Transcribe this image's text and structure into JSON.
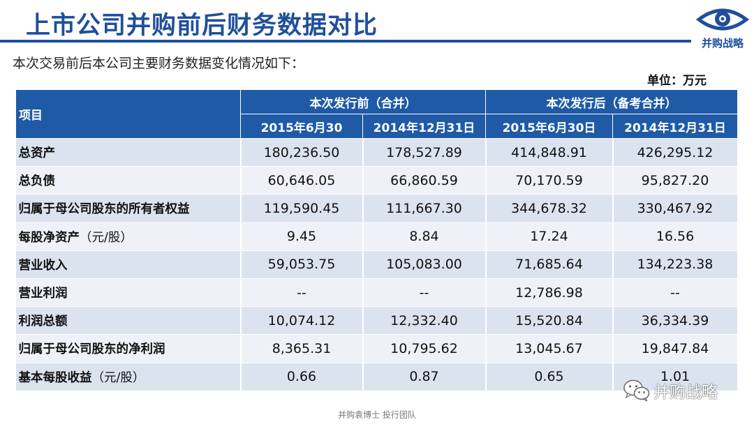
{
  "title": "上市公司并购前后财务数据对比",
  "logo": {
    "icon": "eye-icon",
    "text": "并购战略",
    "color": "#1f4f9c"
  },
  "intro": "本次交易前后本公司主要财务数据变化情况如下：",
  "unit": "单位：万元",
  "colors": {
    "header_blue": "#1f5aa6",
    "title_blue": "#1f4f9c",
    "row_dark": "#dbe3ef",
    "row_light": "#eef2f8"
  },
  "table": {
    "item_header": "项目",
    "groups": [
      "本次发行前（合并）",
      "本次发行后（备考合并）"
    ],
    "periods": [
      "2015年6月30",
      "2014年12月31日",
      "2015年6月30日",
      "2014年12月31日"
    ],
    "rows": [
      {
        "label": "总资产",
        "suffix": "",
        "values": [
          "180,236.50",
          "178,527.89",
          "414,848.91",
          "426,295.12"
        ]
      },
      {
        "label": "总负债",
        "suffix": "",
        "values": [
          "60,646.05",
          "66,860.59",
          "70,170.59",
          "95,827.20"
        ]
      },
      {
        "label": "归属于母公司股东的所有者权益",
        "suffix": "",
        "values": [
          "119,590.45",
          "111,667.30",
          "344,678.32",
          "330,467.92"
        ]
      },
      {
        "label": "每股净资产",
        "suffix": "（元/股）",
        "values": [
          "9.45",
          "8.84",
          "17.24",
          "16.56"
        ]
      },
      {
        "label": "营业收入",
        "suffix": "",
        "values": [
          "59,053.75",
          "105,083.00",
          "71,685.64",
          "134,223.38"
        ]
      },
      {
        "label": "营业利润",
        "suffix": "",
        "values": [
          "--",
          "--",
          "12,786.98",
          "--"
        ]
      },
      {
        "label": "利润总额",
        "suffix": "",
        "values": [
          "10,074.12",
          "12,332.40",
          "15,520.84",
          "36,334.39"
        ]
      },
      {
        "label": "归属于母公司股东的净利润",
        "suffix": "",
        "values": [
          "8,365.31",
          "10,795.62",
          "13,045.67",
          "19,847.84"
        ]
      },
      {
        "label": "基本每股收益",
        "suffix": "（元/股）",
        "values": [
          "0.66",
          "0.87",
          "0.65",
          "1.01"
        ]
      }
    ]
  },
  "footer": "并购袁博士 投行团队",
  "watermark": {
    "icon": "wechat-icon",
    "text": "并购战略"
  }
}
